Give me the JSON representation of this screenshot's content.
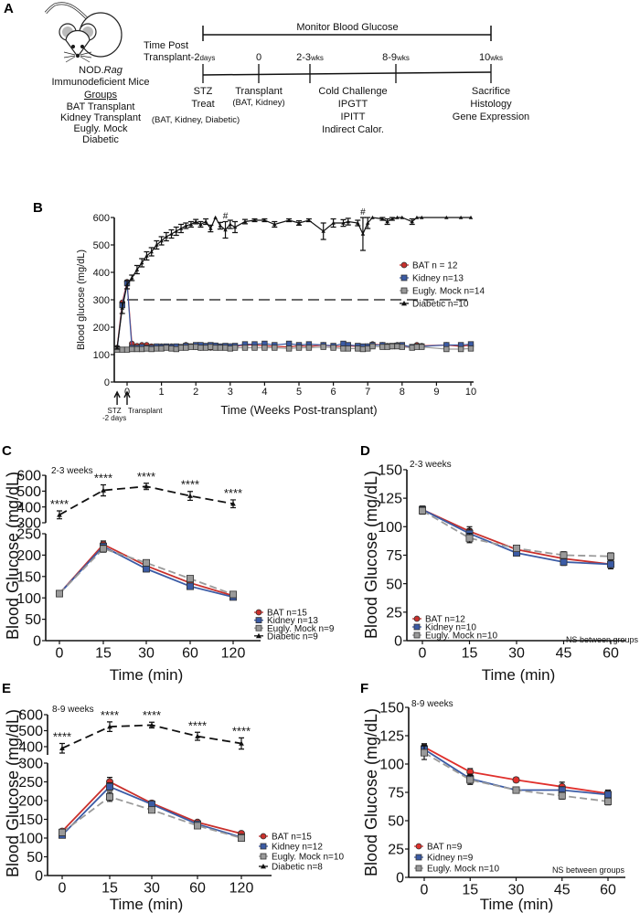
{
  "panel_a": {
    "label": "A",
    "mouse_strain": "NOD.",
    "mouse_strain_italic": "Rag",
    "mouse_desc": "Immunodeficient Mice",
    "groups_heading": "Groups",
    "groups": [
      "BAT Transplant",
      "Kidney Transplant",
      "Eugly. Mock",
      "Diabetic"
    ],
    "monitor_label": "Monitor Blood Glucose",
    "time_post_1": "Time Post",
    "time_post_2": "Transplant",
    "timepoints": [
      {
        "value": "-2",
        "unit": "days",
        "events": [
          "STZ",
          "Treat",
          "(BAT, Kidney, Diabetic)"
        ]
      },
      {
        "value": "0",
        "unit": "",
        "events": [
          "Transplant",
          "(BAT, Kidney)"
        ]
      },
      {
        "value": "2-3",
        "unit": "wks",
        "events": [
          "Cold Challenge",
          "IPGTT",
          "IPITT",
          "Indirect Calor."
        ]
      },
      {
        "value": "8-9",
        "unit": "wks",
        "events": []
      },
      {
        "value": "10",
        "unit": "wks",
        "events": [
          "Sacrifice",
          "Histology",
          "Gene Expression"
        ]
      }
    ]
  },
  "chart_data": [
    {
      "panel": "B",
      "type": "line",
      "xlabel": "Time (Weeks Post-transplant)",
      "ylabel": "Blood glucose (mg/dL)",
      "xlim": [
        -0.3,
        10
      ],
      "ylim": [
        0,
        600
      ],
      "xticks": [
        0,
        1,
        2,
        3,
        4,
        5,
        6,
        7,
        8,
        9,
        10
      ],
      "yticks": [
        0,
        100,
        200,
        300,
        400,
        500,
        600
      ],
      "threshold": 300,
      "legend_position": "right",
      "annotations": [
        {
          "x": 2.86,
          "text": "#"
        },
        {
          "x": 6.86,
          "text": "#"
        }
      ],
      "arrows": [
        {
          "x": -0.29,
          "labels": [
            "STZ",
            "-2 days"
          ]
        },
        {
          "x": 0,
          "labels": [
            "Transplant"
          ]
        }
      ],
      "x": [
        -0.29,
        -0.14,
        0,
        0.14,
        0.29,
        0.43,
        0.57,
        0.71,
        0.86,
        1,
        1.14,
        1.29,
        1.43,
        1.57,
        1.71,
        1.86,
        2,
        2.14,
        2.29,
        2.43,
        2.57,
        2.71,
        2.86,
        3,
        3.14,
        3.43,
        3.71,
        4,
        4.29,
        4.71,
        5,
        5.29,
        5.71,
        6,
        6.29,
        6.43,
        6.71,
        6.86,
        7,
        7.14,
        7.43,
        7.57,
        7.71,
        7.86,
        8,
        8.29,
        8.43,
        8.57,
        9.29,
        9.71,
        10
      ],
      "series": [
        {
          "name": "BAT n = 12",
          "color": "#c9302c",
          "marker": "circle",
          "dash": false,
          "values": [
            125,
            290,
            365,
            140,
            132,
            135,
            135,
            130,
            128,
            130,
            128,
            130,
            125,
            128,
            135,
            130,
            128,
            125,
            128,
            125,
            127,
            128,
            128,
            130,
            130,
            135,
            135,
            132,
            130,
            128,
            132,
            130,
            135,
            130,
            130,
            132,
            130,
            128,
            130,
            138,
            135,
            132,
            130,
            135,
            132,
            128,
            135,
            132,
            135,
            130,
            135
          ]
        },
        {
          "name": "Kidney n=13",
          "color": "#3b5ba5",
          "marker": "square",
          "dash": false,
          "values": [
            120,
            280,
            360,
            125,
            125,
            128,
            125,
            125,
            130,
            128,
            130,
            128,
            130,
            128,
            132,
            130,
            135,
            135,
            132,
            135,
            133,
            130,
            132,
            130,
            132,
            138,
            138,
            140,
            135,
            140,
            135,
            138,
            135,
            132,
            140,
            135,
            132,
            130,
            130,
            135,
            135,
            130,
            132,
            133,
            135,
            128,
            130,
            130,
            135,
            135,
            138
          ]
        },
        {
          "name": "Eugly. Mock n=14",
          "color": "#9a9a9a",
          "marker": "square",
          "dash": false,
          "values": [
            118,
            118,
            118,
            120,
            120,
            120,
            122,
            120,
            122,
            122,
            125,
            122,
            120,
            125,
            125,
            128,
            128,
            125,
            125,
            128,
            125,
            125,
            125,
            122,
            125,
            125,
            125,
            125,
            125,
            122,
            125,
            125,
            128,
            125,
            122,
            122,
            122,
            120,
            122,
            130,
            128,
            128,
            130,
            130,
            128,
            125,
            128,
            128,
            120,
            120,
            122
          ]
        },
        {
          "name": "Diabetic n=10",
          "color": "#111111",
          "marker": "triangle",
          "dash": false,
          "values": [
            125,
            270,
            355,
            380,
            410,
            435,
            460,
            475,
            500,
            515,
            530,
            540,
            550,
            560,
            570,
            575,
            585,
            575,
            585,
            560,
            600,
            570,
            555,
            575,
            565,
            585,
            590,
            590,
            575,
            590,
            580,
            590,
            550,
            580,
            580,
            585,
            580,
            540,
            580,
            600,
            595,
            585,
            595,
            600,
            600,
            585,
            600,
            600,
            600,
            600,
            600
          ],
          "sem": [
            5,
            20,
            15,
            10,
            15,
            15,
            15,
            15,
            15,
            15,
            15,
            15,
            15,
            15,
            10,
            10,
            8,
            10,
            10,
            12,
            0,
            12,
            30,
            15,
            20,
            8,
            5,
            5,
            10,
            5,
            8,
            5,
            30,
            15,
            12,
            12,
            10,
            60,
            20,
            0,
            5,
            10,
            5,
            0,
            0,
            10,
            0,
            0,
            0,
            0,
            0
          ]
        }
      ]
    },
    {
      "panel": "C",
      "type": "line",
      "subtitle": "2-3 weeks",
      "xlabel": "Time (min)",
      "ylabel": "Blood Glucose (mg/dL)",
      "categories": [
        "0",
        "15",
        "30",
        "60",
        "120"
      ],
      "yticks": [
        0,
        50,
        100,
        150,
        200,
        250,
        300,
        400,
        500,
        600
      ],
      "ylim": [
        0,
        600
      ],
      "broken_axis": [
        250,
        300
      ],
      "legend_position": "bottom-right",
      "significance": "****",
      "series": [
        {
          "name": "BAT n=15",
          "color": "#c9302c",
          "marker": "circle",
          "dash": false,
          "values": [
            110,
            225,
            175,
            135,
            105
          ],
          "sem": [
            4,
            8,
            7,
            6,
            4
          ]
        },
        {
          "name": "Kidney n=13",
          "color": "#3b5ba5",
          "marker": "square",
          "dash": false,
          "values": [
            110,
            220,
            168,
            127,
            102
          ],
          "sem": [
            4,
            8,
            7,
            5,
            4
          ]
        },
        {
          "name": "Eugly. Mock n=9",
          "color": "#9a9a9a",
          "marker": "square",
          "dash": true,
          "values": [
            110,
            215,
            182,
            145,
            108
          ],
          "sem": [
            4,
            8,
            7,
            6,
            4
          ]
        },
        {
          "name": "Diabetic n=9",
          "color": "#111111",
          "marker": "triangle",
          "dash": true,
          "values": [
            350,
            505,
            530,
            470,
            420
          ],
          "sem": [
            25,
            35,
            20,
            28,
            25
          ]
        }
      ]
    },
    {
      "panel": "D",
      "type": "line",
      "subtitle": "2-3 weeks",
      "xlabel": "Time (min)",
      "ylabel": "Blood Glucose (mg/dL)",
      "x": [
        0,
        15,
        30,
        45,
        60
      ],
      "xticks": [
        0,
        15,
        30,
        45,
        60
      ],
      "yticks": [
        0,
        25,
        50,
        75,
        100,
        125,
        150
      ],
      "ylim": [
        0,
        150
      ],
      "legend_position": "bottom-left",
      "note": "NS between groups",
      "series": [
        {
          "name": "BAT n=12",
          "color": "#c9302c",
          "marker": "circle",
          "dash": false,
          "values": [
            115,
            96,
            80,
            72,
            67
          ],
          "sem": [
            3,
            4,
            2,
            4,
            4
          ]
        },
        {
          "name": "Kidney n=10",
          "color": "#3b5ba5",
          "marker": "square",
          "dash": false,
          "values": [
            115,
            94,
            77,
            69,
            67
          ],
          "sem": [
            3,
            4,
            2,
            3,
            3
          ]
        },
        {
          "name": "Eugly. Mock n=10",
          "color": "#9a9a9a",
          "marker": "square",
          "dash": true,
          "values": [
            114,
            90,
            81,
            75,
            74
          ],
          "sem": [
            3,
            4,
            2,
            3,
            3
          ]
        }
      ]
    },
    {
      "panel": "E",
      "type": "line",
      "subtitle": "8-9 weeks",
      "xlabel": "Time (min)",
      "ylabel": "Blood Glucose (mg/dL)",
      "categories": [
        "0",
        "15",
        "30",
        "60",
        "120"
      ],
      "yticks": [
        0,
        50,
        100,
        150,
        200,
        250,
        300,
        400,
        500,
        600
      ],
      "ylim": [
        0,
        600
      ],
      "broken_axis": [
        300,
        350
      ],
      "legend_position": "bottom-right",
      "significance": "****",
      "series": [
        {
          "name": "BAT n=15",
          "color": "#c9302c",
          "marker": "circle",
          "dash": false,
          "values": [
            118,
            250,
            193,
            142,
            112
          ],
          "sem": [
            5,
            12,
            6,
            5,
            4
          ]
        },
        {
          "name": "Kidney n=12",
          "color": "#3b5ba5",
          "marker": "square",
          "dash": false,
          "values": [
            108,
            237,
            190,
            137,
            102
          ],
          "sem": [
            5,
            10,
            6,
            5,
            4
          ]
        },
        {
          "name": "Eugly. Mock n=10",
          "color": "#9a9a9a",
          "marker": "square",
          "dash": true,
          "values": [
            115,
            210,
            175,
            133,
            100
          ],
          "sem": [
            5,
            12,
            6,
            5,
            4
          ]
        },
        {
          "name": "Diabetic n=8",
          "color": "#111111",
          "marker": "triangle",
          "dash": true,
          "values": [
            390,
            525,
            535,
            465,
            420
          ],
          "sem": [
            30,
            30,
            18,
            25,
            35
          ]
        }
      ]
    },
    {
      "panel": "F",
      "type": "line",
      "subtitle": "8-9 weeks",
      "xlabel": "Time (min)",
      "ylabel": "Blood Glucose (mg/dL)",
      "x": [
        0,
        15,
        30,
        45,
        60
      ],
      "xticks": [
        0,
        15,
        30,
        45,
        60
      ],
      "yticks": [
        0,
        25,
        50,
        75,
        100,
        125,
        150
      ],
      "ylim": [
        0,
        150
      ],
      "legend_position": "bottom-left",
      "note": "NS between groups",
      "series": [
        {
          "name": "BAT n=9",
          "color": "#e0302c",
          "marker": "circle",
          "dash": false,
          "values": [
            115,
            93,
            86,
            80,
            74
          ],
          "sem": [
            3,
            3,
            2,
            4,
            3
          ]
        },
        {
          "name": "Kidney n=9",
          "color": "#3b5ba5",
          "marker": "square",
          "dash": false,
          "values": [
            113,
            87,
            77,
            77,
            73
          ],
          "sem": [
            4,
            4,
            2,
            3,
            3
          ]
        },
        {
          "name": "Eugly. Mock n=10",
          "color": "#9a9a9a",
          "marker": "square",
          "dash": true,
          "values": [
            110,
            86,
            77,
            72,
            67
          ],
          "sem": [
            6,
            4,
            2,
            3,
            3
          ]
        }
      ]
    }
  ]
}
